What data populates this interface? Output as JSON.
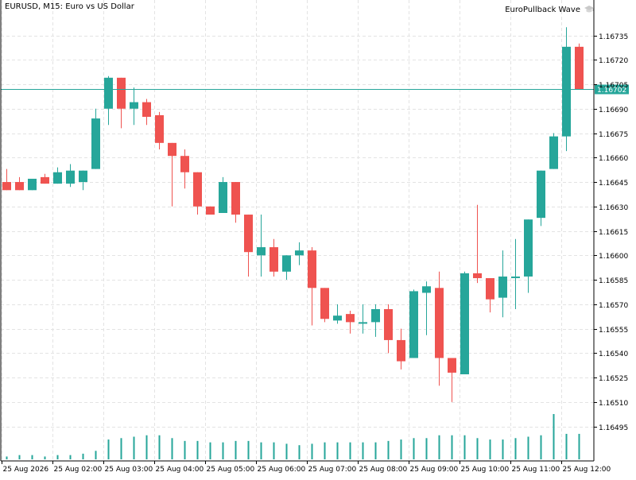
{
  "header": {
    "symbol_text": "EURUSD, M15:  Euro vs US Dollar",
    "indicator_name": "EuroPullback Wave",
    "indicator_icon": "graduation-cap-icon"
  },
  "colors": {
    "bull": "#26a69a",
    "bear": "#ef5350",
    "grid": "#e3e3e3",
    "axis": "#000000",
    "price_line": "#26a69a",
    "price_tag_bg": "#26a69a",
    "price_tag_text": "#ffffff"
  },
  "chart_data": {
    "type": "candlestick",
    "symbol": "EURUSD",
    "timeframe": "M15",
    "y_axis_ticks": [
      "1.16735",
      "1.16720",
      "1.16705",
      "1.16690",
      "1.16675",
      "1.16660",
      "1.16645",
      "1.16630",
      "1.16615",
      "1.16600",
      "1.16585",
      "1.16570",
      "1.16555",
      "1.16540",
      "1.16525",
      "1.16510",
      "1.16495"
    ],
    "ylim": [
      1.16475,
      1.1675
    ],
    "current_price": "1.16702",
    "x_axis_labels": [
      {
        "label": "25 Aug 2026",
        "bar": 0
      },
      {
        "label": "25 Aug 02:00",
        "bar": 4
      },
      {
        "label": "25 Aug 03:00",
        "bar": 8
      },
      {
        "label": "25 Aug 04:00",
        "bar": 12
      },
      {
        "label": "25 Aug 05:00",
        "bar": 16
      },
      {
        "label": "25 Aug 06:00",
        "bar": 20
      },
      {
        "label": "25 Aug 07:00",
        "bar": 24
      },
      {
        "label": "25 Aug 08:00",
        "bar": 28
      },
      {
        "label": "25 Aug 09:00",
        "bar": 32
      },
      {
        "label": "25 Aug 10:00",
        "bar": 36
      },
      {
        "label": "25 Aug 11:00",
        "bar": 40
      },
      {
        "label": "25 Aug 12:00",
        "bar": 44
      }
    ],
    "candles": [
      {
        "o": 1.16645,
        "h": 1.16653,
        "l": 1.1664,
        "c": 1.1664
      },
      {
        "o": 1.16645,
        "h": 1.16648,
        "l": 1.1664,
        "c": 1.1664
      },
      {
        "o": 1.1664,
        "h": 1.16647,
        "l": 1.1664,
        "c": 1.16647
      },
      {
        "o": 1.16648,
        "h": 1.1665,
        "l": 1.16644,
        "c": 1.16644
      },
      {
        "o": 1.16644,
        "h": 1.16654,
        "l": 1.16644,
        "c": 1.16651
      },
      {
        "o": 1.16644,
        "h": 1.16656,
        "l": 1.16642,
        "c": 1.16652
      },
      {
        "o": 1.16645,
        "h": 1.16652,
        "l": 1.1664,
        "c": 1.16652
      },
      {
        "o": 1.16653,
        "h": 1.1669,
        "l": 1.16653,
        "c": 1.16684
      },
      {
        "o": 1.1669,
        "h": 1.1671,
        "l": 1.1668,
        "c": 1.16709
      },
      {
        "o": 1.16709,
        "h": 1.16709,
        "l": 1.16678,
        "c": 1.1669
      },
      {
        "o": 1.1669,
        "h": 1.16703,
        "l": 1.1668,
        "c": 1.16694
      },
      {
        "o": 1.16694,
        "h": 1.16696,
        "l": 1.1668,
        "c": 1.16685
      },
      {
        "o": 1.16686,
        "h": 1.16688,
        "l": 1.16665,
        "c": 1.16669
      },
      {
        "o": 1.16669,
        "h": 1.16669,
        "l": 1.1663,
        "c": 1.16661
      },
      {
        "o": 1.16661,
        "h": 1.16665,
        "l": 1.16641,
        "c": 1.16651
      },
      {
        "o": 1.16651,
        "h": 1.16651,
        "l": 1.16625,
        "c": 1.1663
      },
      {
        "o": 1.1663,
        "h": 1.1663,
        "l": 1.16625,
        "c": 1.16625
      },
      {
        "o": 1.16626,
        "h": 1.16648,
        "l": 1.16626,
        "c": 1.16645
      },
      {
        "o": 1.16645,
        "h": 1.16645,
        "l": 1.1662,
        "c": 1.16625
      },
      {
        "o": 1.16625,
        "h": 1.16625,
        "l": 1.16587,
        "c": 1.16602
      },
      {
        "o": 1.166,
        "h": 1.16625,
        "l": 1.16587,
        "c": 1.16605
      },
      {
        "o": 1.16605,
        "h": 1.1661,
        "l": 1.16587,
        "c": 1.1659
      },
      {
        "o": 1.1659,
        "h": 1.166,
        "l": 1.16585,
        "c": 1.166
      },
      {
        "o": 1.166,
        "h": 1.16608,
        "l": 1.16594,
        "c": 1.16603
      },
      {
        "o": 1.16603,
        "h": 1.16605,
        "l": 1.16557,
        "c": 1.1658
      },
      {
        "o": 1.1658,
        "h": 1.1658,
        "l": 1.16559,
        "c": 1.16561
      },
      {
        "o": 1.1656,
        "h": 1.1657,
        "l": 1.16558,
        "c": 1.16563
      },
      {
        "o": 1.16564,
        "h": 1.16566,
        "l": 1.16552,
        "c": 1.16559
      },
      {
        "o": 1.16559,
        "h": 1.1657,
        "l": 1.16552,
        "c": 1.16559
      },
      {
        "o": 1.16559,
        "h": 1.1657,
        "l": 1.1655,
        "c": 1.16567
      },
      {
        "o": 1.16567,
        "h": 1.1657,
        "l": 1.1654,
        "c": 1.16548
      },
      {
        "o": 1.16548,
        "h": 1.16555,
        "l": 1.1653,
        "c": 1.16535
      },
      {
        "o": 1.16537,
        "h": 1.16579,
        "l": 1.16537,
        "c": 1.16578
      },
      {
        "o": 1.16577,
        "h": 1.16584,
        "l": 1.16551,
        "c": 1.16581
      },
      {
        "o": 1.1658,
        "h": 1.1659,
        "l": 1.1652,
        "c": 1.16537
      },
      {
        "o": 1.16537,
        "h": 1.16537,
        "l": 1.1651,
        "c": 1.16528
      },
      {
        "o": 1.16527,
        "h": 1.1659,
        "l": 1.16527,
        "c": 1.16589
      },
      {
        "o": 1.16589,
        "h": 1.16631,
        "l": 1.16583,
        "c": 1.16586
      },
      {
        "o": 1.16586,
        "h": 1.16586,
        "l": 1.16565,
        "c": 1.16573
      },
      {
        "o": 1.16574,
        "h": 1.16603,
        "l": 1.16562,
        "c": 1.16587
      },
      {
        "o": 1.16587,
        "h": 1.1661,
        "l": 1.16567,
        "c": 1.16587
      },
      {
        "o": 1.16587,
        "h": 1.16622,
        "l": 1.16577,
        "c": 1.16622
      },
      {
        "o": 1.16623,
        "h": 1.16652,
        "l": 1.16618,
        "c": 1.16652
      },
      {
        "o": 1.16653,
        "h": 1.16675,
        "l": 1.16653,
        "c": 1.16673
      },
      {
        "o": 1.16673,
        "h": 1.1674,
        "l": 1.16664,
        "c": 1.16728
      },
      {
        "o": 1.16728,
        "h": 1.1673,
        "l": 1.16702,
        "c": 1.16702
      }
    ],
    "volumes": [
      2,
      3,
      3,
      2,
      3,
      3,
      4,
      6,
      14,
      15,
      16,
      17,
      17,
      15,
      13,
      13,
      12,
      12,
      13,
      13,
      12,
      12,
      11,
      10,
      11,
      12,
      12,
      12,
      12,
      12,
      13,
      14,
      15,
      15,
      17,
      17,
      17,
      15,
      14,
      14,
      15,
      16,
      17,
      32,
      18,
      18
    ],
    "volume_max": 32
  }
}
